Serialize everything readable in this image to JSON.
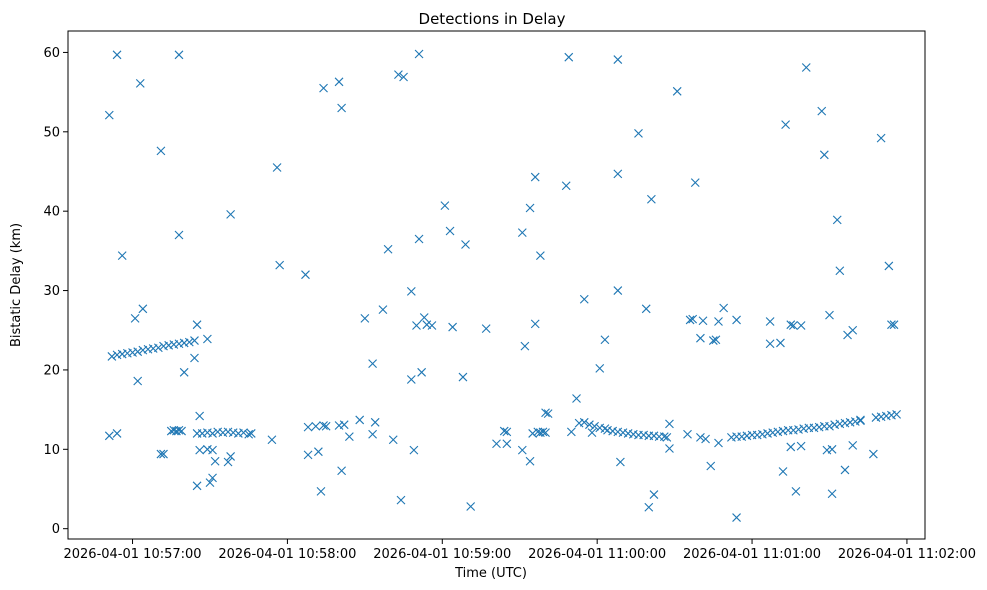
{
  "colors": {
    "series": "#1f77b4",
    "axis": "#000000",
    "background": "#ffffff"
  },
  "chart_data": {
    "type": "scatter",
    "title": "Detections in Delay",
    "xlabel": "Time (UTC)",
    "ylabel": "Bistatic Delay (km)",
    "x_ticks": [
      "2026-04-01 10:57:00",
      "2026-04-01 10:58:00",
      "2026-04-01 10:59:00",
      "2026-04-01 11:00:00",
      "2026-04-01 11:01:00",
      "2026-04-01 11:02:00"
    ],
    "y_ticks": [
      0,
      10,
      20,
      30,
      40,
      50,
      60
    ],
    "xlim": [
      "2026-04-01 10:56:35",
      "2026-04-01 11:02:07"
    ],
    "ylim": [
      -1.3,
      62.7
    ],
    "marker": "x",
    "grid": false,
    "legend": false,
    "points": [
      [
        "2026-04-01 10:56:51",
        52.1
      ],
      [
        "2026-04-01 10:56:54",
        59.7
      ],
      [
        "2026-04-01 10:57:03",
        56.1
      ],
      [
        "2026-04-01 10:57:11",
        47.6
      ],
      [
        "2026-04-01 10:57:18",
        59.7
      ],
      [
        "2026-04-01 10:57:18",
        37.0
      ],
      [
        "2026-04-01 10:56:56",
        34.4
      ],
      [
        "2026-04-01 10:57:01",
        26.5
      ],
      [
        "2026-04-01 10:57:04",
        27.7
      ],
      [
        "2026-04-01 10:57:02",
        18.6
      ],
      [
        "2026-04-01 10:57:20",
        19.7
      ],
      [
        "2026-04-01 10:57:25",
        25.7
      ],
      [
        "2026-04-01 10:57:24",
        21.5
      ],
      [
        "2026-04-01 10:57:29",
        23.9
      ],
      [
        "2026-04-01 10:57:38",
        39.6
      ],
      [
        "2026-04-01 10:56:52",
        21.7
      ],
      [
        "2026-04-01 10:56:54",
        21.9
      ],
      [
        "2026-04-01 10:56:56",
        22.0
      ],
      [
        "2026-04-01 10:56:58",
        22.1
      ],
      [
        "2026-04-01 10:57:00",
        22.2
      ],
      [
        "2026-04-01 10:57:02",
        22.3
      ],
      [
        "2026-04-01 10:57:04",
        22.5
      ],
      [
        "2026-04-01 10:57:06",
        22.6
      ],
      [
        "2026-04-01 10:57:08",
        22.7
      ],
      [
        "2026-04-01 10:57:10",
        22.8
      ],
      [
        "2026-04-01 10:57:12",
        23.0
      ],
      [
        "2026-04-01 10:57:14",
        23.1
      ],
      [
        "2026-04-01 10:57:16",
        23.2
      ],
      [
        "2026-04-01 10:57:18",
        23.3
      ],
      [
        "2026-04-01 10:57:20",
        23.4
      ],
      [
        "2026-04-01 10:57:22",
        23.5
      ],
      [
        "2026-04-01 10:57:24",
        23.7
      ],
      [
        "2026-04-01 10:56:51",
        11.7
      ],
      [
        "2026-04-01 10:56:54",
        12.0
      ],
      [
        "2026-04-01 10:57:11",
        9.4
      ],
      [
        "2026-04-01 10:57:12",
        9.4
      ],
      [
        "2026-04-01 10:57:15",
        12.3
      ],
      [
        "2026-04-01 10:57:16",
        12.4
      ],
      [
        "2026-04-01 10:57:17",
        12.3
      ],
      [
        "2026-04-01 10:57:18",
        12.4
      ],
      [
        "2026-04-01 10:57:19",
        12.3
      ],
      [
        "2026-04-01 10:57:26",
        14.2
      ],
      [
        "2026-04-01 10:57:25",
        12.0
      ],
      [
        "2026-04-01 10:57:27",
        12.0
      ],
      [
        "2026-04-01 10:57:29",
        12.1
      ],
      [
        "2026-04-01 10:57:31",
        12.0
      ],
      [
        "2026-04-01 10:57:33",
        12.2
      ],
      [
        "2026-04-01 10:57:35",
        12.1
      ],
      [
        "2026-04-01 10:57:37",
        12.2
      ],
      [
        "2026-04-01 10:57:39",
        12.1
      ],
      [
        "2026-04-01 10:57:41",
        12.0
      ],
      [
        "2026-04-01 10:57:43",
        12.1
      ],
      [
        "2026-04-01 10:57:45",
        11.9
      ],
      [
        "2026-04-01 10:57:46",
        12.0
      ],
      [
        "2026-04-01 10:57:26",
        9.9
      ],
      [
        "2026-04-01 10:57:29",
        10.0
      ],
      [
        "2026-04-01 10:57:31",
        9.9
      ],
      [
        "2026-04-01 10:57:32",
        8.5
      ],
      [
        "2026-04-01 10:57:37",
        8.4
      ],
      [
        "2026-04-01 10:57:38",
        9.1
      ],
      [
        "2026-04-01 10:57:25",
        5.4
      ],
      [
        "2026-04-01 10:57:30",
        5.8
      ],
      [
        "2026-04-01 10:57:31",
        6.4
      ],
      [
        "2026-04-01 10:57:54",
        11.2
      ],
      [
        "2026-04-01 10:57:56",
        45.5
      ],
      [
        "2026-04-01 10:57:57",
        33.2
      ],
      [
        "2026-04-01 10:58:07",
        32.0
      ],
      [
        "2026-04-01 10:58:08",
        9.3
      ],
      [
        "2026-04-01 10:58:08",
        12.8
      ],
      [
        "2026-04-01 10:58:11",
        12.9
      ],
      [
        "2026-04-01 10:58:12",
        9.7
      ],
      [
        "2026-04-01 10:58:13",
        4.7
      ],
      [
        "2026-04-01 10:58:14",
        13.0
      ],
      [
        "2026-04-01 10:58:15",
        12.9
      ],
      [
        "2026-04-01 10:58:14",
        55.5
      ],
      [
        "2026-04-01 10:58:20",
        56.3
      ],
      [
        "2026-04-01 10:58:21",
        53.0
      ],
      [
        "2026-04-01 10:58:20",
        13.0
      ],
      [
        "2026-04-01 10:58:22",
        13.1
      ],
      [
        "2026-04-01 10:58:24",
        11.6
      ],
      [
        "2026-04-01 10:58:21",
        7.3
      ],
      [
        "2026-04-01 10:58:28",
        13.7
      ],
      [
        "2026-04-01 10:58:30",
        26.5
      ],
      [
        "2026-04-01 10:58:33",
        20.8
      ],
      [
        "2026-04-01 10:58:33",
        11.9
      ],
      [
        "2026-04-01 10:58:34",
        13.4
      ],
      [
        "2026-04-01 10:58:37",
        27.6
      ],
      [
        "2026-04-01 10:58:39",
        35.2
      ],
      [
        "2026-04-01 10:58:41",
        11.2
      ],
      [
        "2026-04-01 10:58:43",
        57.2
      ],
      [
        "2026-04-01 10:58:45",
        56.9
      ],
      [
        "2026-04-01 10:58:44",
        3.6
      ],
      [
        "2026-04-01 10:58:48",
        29.9
      ],
      [
        "2026-04-01 10:58:48",
        18.8
      ],
      [
        "2026-04-01 10:58:49",
        9.9
      ],
      [
        "2026-04-01 10:58:50",
        25.6
      ],
      [
        "2026-04-01 10:58:51",
        36.5
      ],
      [
        "2026-04-01 10:58:51",
        59.8
      ],
      [
        "2026-04-01 10:58:52",
        19.7
      ],
      [
        "2026-04-01 10:58:53",
        26.6
      ],
      [
        "2026-04-01 10:58:54",
        25.7
      ],
      [
        "2026-04-01 10:58:56",
        25.6
      ],
      [
        "2026-04-01 10:59:01",
        40.7
      ],
      [
        "2026-04-01 10:59:03",
        37.5
      ],
      [
        "2026-04-01 10:59:04",
        25.4
      ],
      [
        "2026-04-01 10:59:08",
        19.1
      ],
      [
        "2026-04-01 10:59:09",
        35.8
      ],
      [
        "2026-04-01 10:59:11",
        2.8
      ],
      [
        "2026-04-01 10:59:17",
        25.2
      ],
      [
        "2026-04-01 10:59:21",
        10.7
      ],
      [
        "2026-04-01 10:59:24",
        12.3
      ],
      [
        "2026-04-01 10:59:25",
        12.2
      ],
      [
        "2026-04-01 10:59:25",
        10.7
      ],
      [
        "2026-04-01 10:59:31",
        37.3
      ],
      [
        "2026-04-01 10:59:31",
        9.9
      ],
      [
        "2026-04-01 10:59:32",
        23.0
      ],
      [
        "2026-04-01 10:59:34",
        40.4
      ],
      [
        "2026-04-01 10:59:34",
        8.5
      ],
      [
        "2026-04-01 10:59:35",
        12.0
      ],
      [
        "2026-04-01 10:59:36",
        44.3
      ],
      [
        "2026-04-01 10:59:36",
        25.8
      ],
      [
        "2026-04-01 10:59:37",
        12.2
      ],
      [
        "2026-04-01 10:59:38",
        12.1
      ],
      [
        "2026-04-01 10:59:39",
        12.2
      ],
      [
        "2026-04-01 10:59:40",
        12.1
      ],
      [
        "2026-04-01 10:59:38",
        34.4
      ],
      [
        "2026-04-01 10:59:40",
        14.6
      ],
      [
        "2026-04-01 10:59:41",
        14.5
      ],
      [
        "2026-04-01 10:59:48",
        43.2
      ],
      [
        "2026-04-01 10:59:49",
        59.4
      ],
      [
        "2026-04-01 10:59:50",
        12.2
      ],
      [
        "2026-04-01 10:59:52",
        16.4
      ],
      [
        "2026-04-01 10:59:53",
        13.3
      ],
      [
        "2026-04-01 10:59:55",
        28.9
      ],
      [
        "2026-04-01 10:59:55",
        13.4
      ],
      [
        "2026-04-01 10:59:57",
        13.1
      ],
      [
        "2026-04-01 10:59:59",
        12.9
      ],
      [
        "2026-04-01 10:59:58",
        12.1
      ],
      [
        "2026-04-01 11:00:01",
        20.2
      ],
      [
        "2026-04-01 11:00:01",
        12.7
      ],
      [
        "2026-04-01 11:00:03",
        23.8
      ],
      [
        "2026-04-01 11:00:03",
        12.6
      ],
      [
        "2026-04-01 11:00:04",
        12.4
      ],
      [
        "2026-04-01 11:00:06",
        12.3
      ],
      [
        "2026-04-01 11:00:08",
        30.0
      ],
      [
        "2026-04-01 11:00:08",
        59.1
      ],
      [
        "2026-04-01 11:00:08",
        44.7
      ],
      [
        "2026-04-01 11:00:08",
        12.2
      ],
      [
        "2026-04-01 11:00:09",
        8.4
      ],
      [
        "2026-04-01 11:00:10",
        12.1
      ],
      [
        "2026-04-01 11:00:12",
        12.0
      ],
      [
        "2026-04-01 11:00:14",
        11.9
      ],
      [
        "2026-04-01 11:00:16",
        11.8
      ],
      [
        "2026-04-01 11:00:16",
        49.8
      ],
      [
        "2026-04-01 11:00:18",
        11.8
      ],
      [
        "2026-04-01 11:00:19",
        27.7
      ],
      [
        "2026-04-01 11:00:20",
        11.7
      ],
      [
        "2026-04-01 11:00:20",
        2.7
      ],
      [
        "2026-04-01 11:00:21",
        41.5
      ],
      [
        "2026-04-01 11:00:22",
        11.7
      ],
      [
        "2026-04-01 11:00:22",
        4.3
      ],
      [
        "2026-04-01 11:00:24",
        11.6
      ],
      [
        "2026-04-01 11:00:26",
        11.6
      ],
      [
        "2026-04-01 11:00:27",
        11.5
      ],
      [
        "2026-04-01 11:00:28",
        13.2
      ],
      [
        "2026-04-01 11:00:28",
        10.1
      ],
      [
        "2026-04-01 11:00:31",
        55.1
      ],
      [
        "2026-04-01 11:00:35",
        11.9
      ],
      [
        "2026-04-01 11:00:36",
        26.3
      ],
      [
        "2026-04-01 11:00:37",
        26.4
      ],
      [
        "2026-04-01 11:00:38",
        43.6
      ],
      [
        "2026-04-01 11:00:40",
        11.5
      ],
      [
        "2026-04-01 11:00:40",
        24.0
      ],
      [
        "2026-04-01 11:00:41",
        26.2
      ],
      [
        "2026-04-01 11:00:42",
        11.3
      ],
      [
        "2026-04-01 11:00:44",
        7.9
      ],
      [
        "2026-04-01 11:00:45",
        23.7
      ],
      [
        "2026-04-01 11:00:46",
        23.8
      ],
      [
        "2026-04-01 11:00:47",
        26.1
      ],
      [
        "2026-04-01 11:00:47",
        10.8
      ],
      [
        "2026-04-01 11:00:49",
        27.8
      ],
      [
        "2026-04-01 11:00:52",
        11.5
      ],
      [
        "2026-04-01 11:00:54",
        26.3
      ],
      [
        "2026-04-01 11:00:54",
        11.6
      ],
      [
        "2026-04-01 11:00:54",
        1.4
      ],
      [
        "2026-04-01 11:00:56",
        11.6
      ],
      [
        "2026-04-01 11:00:58",
        11.7
      ],
      [
        "2026-04-01 11:01:00",
        11.8
      ],
      [
        "2026-04-01 11:01:02",
        11.8
      ],
      [
        "2026-04-01 11:01:04",
        11.9
      ],
      [
        "2026-04-01 11:01:06",
        12.0
      ],
      [
        "2026-04-01 11:01:07",
        23.3
      ],
      [
        "2026-04-01 11:01:07",
        26.1
      ],
      [
        "2026-04-01 11:01:08",
        12.1
      ],
      [
        "2026-04-01 11:01:10",
        12.2
      ],
      [
        "2026-04-01 11:01:11",
        23.4
      ],
      [
        "2026-04-01 11:01:12",
        12.3
      ],
      [
        "2026-04-01 11:01:12",
        7.2
      ],
      [
        "2026-04-01 11:01:13",
        50.9
      ],
      [
        "2026-04-01 11:01:14",
        12.4
      ],
      [
        "2026-04-01 11:01:15",
        25.7
      ],
      [
        "2026-04-01 11:01:15",
        10.3
      ],
      [
        "2026-04-01 11:01:16",
        12.4
      ],
      [
        "2026-04-01 11:01:16",
        25.6
      ],
      [
        "2026-04-01 11:01:17",
        4.7
      ],
      [
        "2026-04-01 11:01:18",
        12.5
      ],
      [
        "2026-04-01 11:01:19",
        25.6
      ],
      [
        "2026-04-01 11:01:19",
        10.4
      ],
      [
        "2026-04-01 11:01:20",
        12.6
      ],
      [
        "2026-04-01 11:01:21",
        58.1
      ],
      [
        "2026-04-01 11:01:22",
        12.7
      ],
      [
        "2026-04-01 11:01:24",
        12.7
      ],
      [
        "2026-04-01 11:01:26",
        12.8
      ],
      [
        "2026-04-01 11:01:27",
        52.6
      ],
      [
        "2026-04-01 11:01:28",
        47.1
      ],
      [
        "2026-04-01 11:01:28",
        12.9
      ],
      [
        "2026-04-01 11:01:29",
        9.9
      ],
      [
        "2026-04-01 11:01:30",
        12.9
      ],
      [
        "2026-04-01 11:01:30",
        26.9
      ],
      [
        "2026-04-01 11:01:31",
        10.0
      ],
      [
        "2026-04-01 11:01:31",
        4.4
      ],
      [
        "2026-04-01 11:01:32",
        13.1
      ],
      [
        "2026-04-01 11:01:33",
        38.9
      ],
      [
        "2026-04-01 11:01:34",
        13.2
      ],
      [
        "2026-04-01 11:01:34",
        32.5
      ],
      [
        "2026-04-01 11:01:36",
        13.3
      ],
      [
        "2026-04-01 11:01:36",
        7.4
      ],
      [
        "2026-04-01 11:01:37",
        24.4
      ],
      [
        "2026-04-01 11:01:38",
        13.4
      ],
      [
        "2026-04-01 11:01:39",
        25.0
      ],
      [
        "2026-04-01 11:01:39",
        10.5
      ],
      [
        "2026-04-01 11:01:40",
        13.5
      ],
      [
        "2026-04-01 11:01:42",
        13.6
      ],
      [
        "2026-04-01 11:01:42",
        13.7
      ],
      [
        "2026-04-01 11:01:47",
        9.4
      ],
      [
        "2026-04-01 11:01:48",
        14.0
      ],
      [
        "2026-04-01 11:01:50",
        14.1
      ],
      [
        "2026-04-01 11:01:50",
        49.2
      ],
      [
        "2026-04-01 11:01:52",
        14.2
      ],
      [
        "2026-04-01 11:01:53",
        33.1
      ],
      [
        "2026-04-01 11:01:54",
        14.3
      ],
      [
        "2026-04-01 11:01:54",
        25.7
      ],
      [
        "2026-04-01 11:01:55",
        25.7
      ],
      [
        "2026-04-01 11:01:56",
        14.4
      ]
    ]
  }
}
